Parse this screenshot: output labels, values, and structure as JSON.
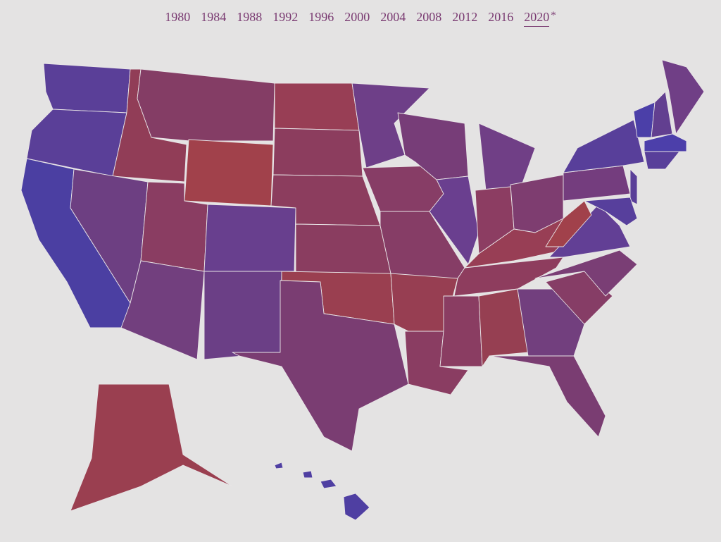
{
  "nav": {
    "years": [
      "1980",
      "1984",
      "1988",
      "1992",
      "1996",
      "2000",
      "2004",
      "2008",
      "2012",
      "2016",
      "2020"
    ],
    "selected": 10,
    "marker": "*"
  }
}
